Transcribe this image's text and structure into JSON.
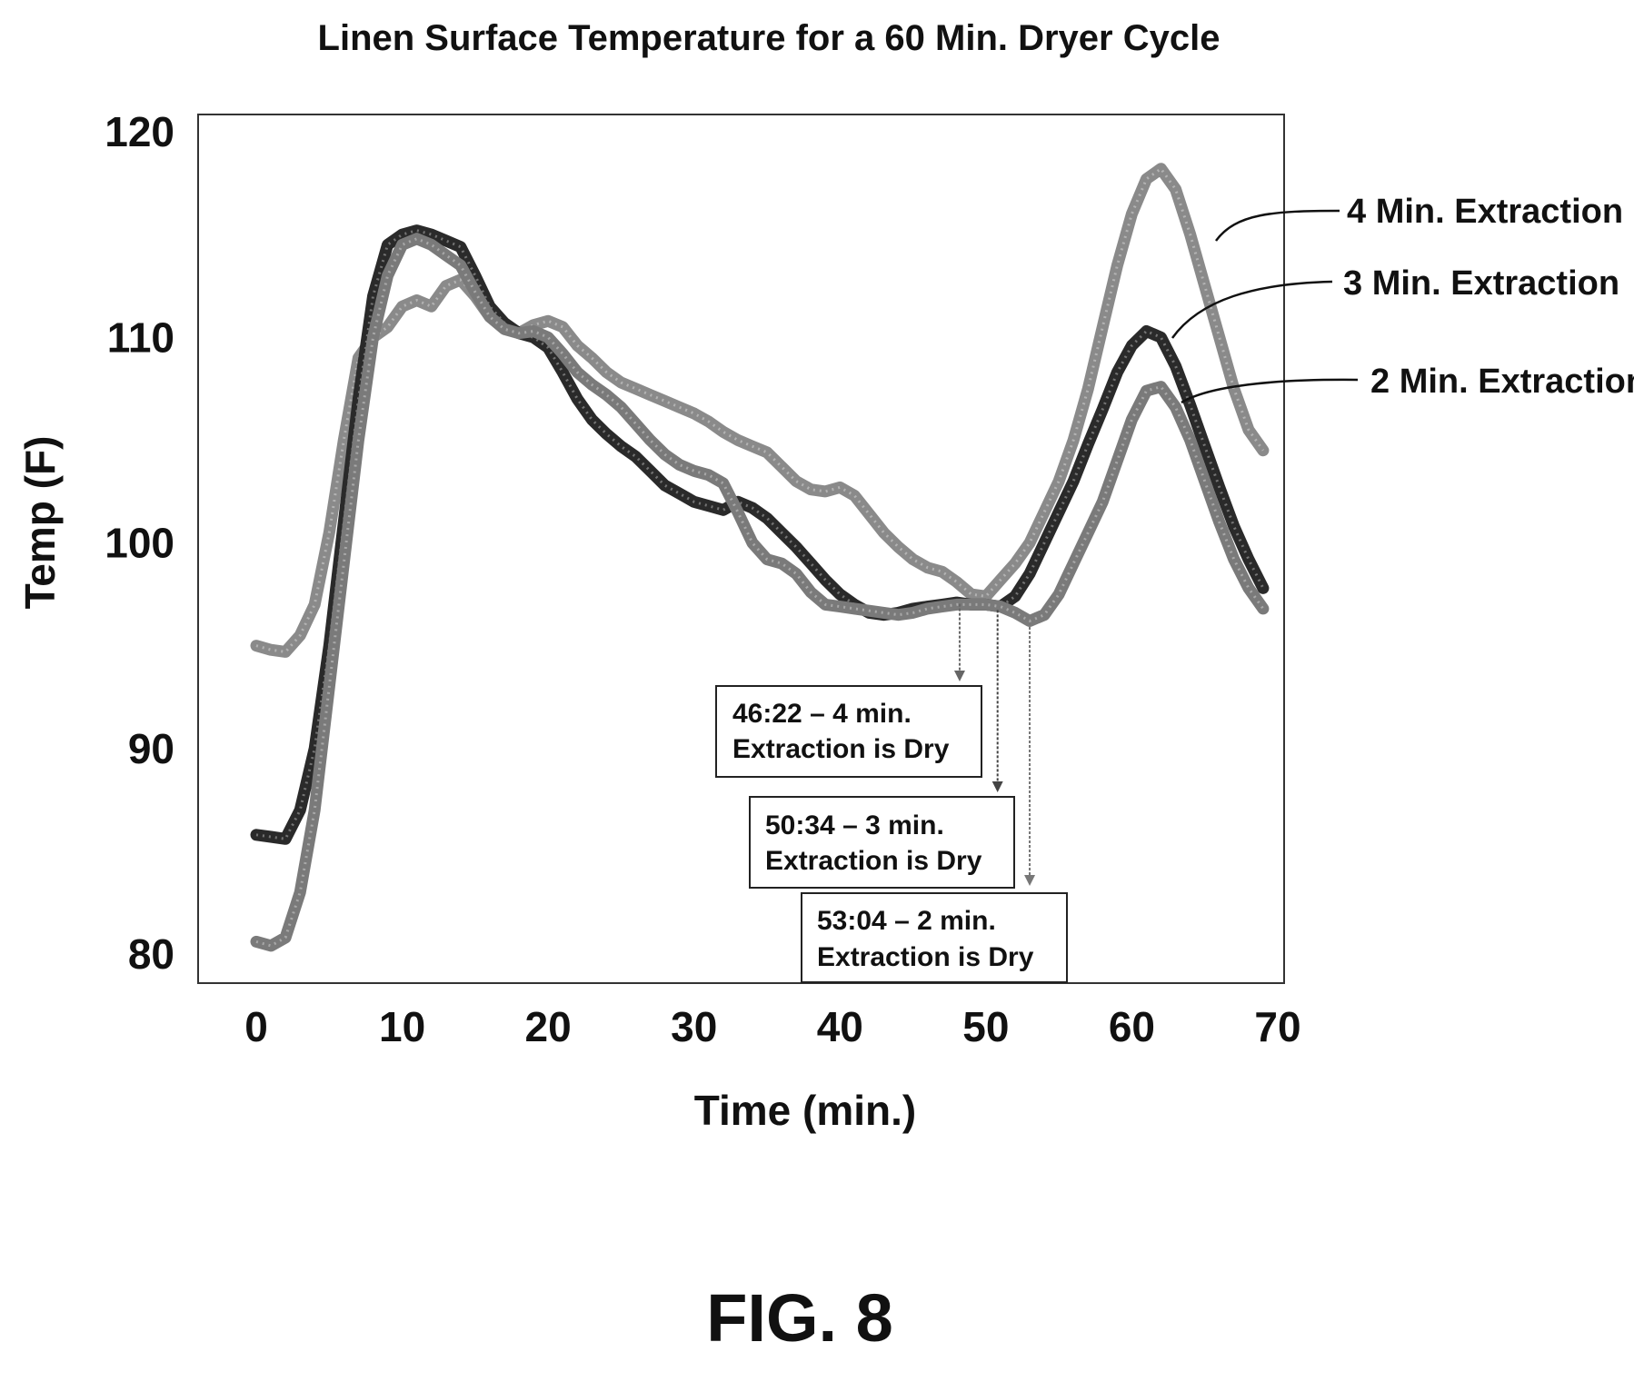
{
  "chart_data": {
    "type": "line",
    "title": "Linen Surface Temperature for a 60 Min. Dryer Cycle",
    "xlabel": "Time (min.)",
    "ylabel": "Temp (F)",
    "xlim": [
      0,
      70
    ],
    "ylim": [
      80,
      120
    ],
    "x_ticks": [
      "0",
      "10",
      "20",
      "30",
      "40",
      "50",
      "60",
      "70"
    ],
    "y_ticks": [
      "80",
      "90",
      "100",
      "110",
      "120"
    ],
    "grid": false,
    "series": [
      {
        "name": "4 Min. Extraction",
        "color": "#8a8a8a",
        "points": [
          [
            0,
            95
          ],
          [
            1,
            94.8
          ],
          [
            2,
            94.7
          ],
          [
            3,
            95.5
          ],
          [
            4,
            97
          ],
          [
            5,
            100.5
          ],
          [
            6,
            105
          ],
          [
            7,
            109
          ],
          [
            8,
            110
          ],
          [
            9,
            110.5
          ],
          [
            10,
            111.5
          ],
          [
            11,
            111.8
          ],
          [
            12,
            111.5
          ],
          [
            13,
            112.5
          ],
          [
            14,
            112.8
          ],
          [
            15,
            112
          ],
          [
            16,
            111
          ],
          [
            17,
            110.5
          ],
          [
            18,
            110.2
          ],
          [
            19,
            110.6
          ],
          [
            20,
            110.8
          ],
          [
            21,
            110.5
          ],
          [
            22,
            109.6
          ],
          [
            23,
            109
          ],
          [
            24,
            108.3
          ],
          [
            25,
            107.8
          ],
          [
            26,
            107.5
          ],
          [
            27,
            107.2
          ],
          [
            28,
            106.9
          ],
          [
            29,
            106.6
          ],
          [
            30,
            106.3
          ],
          [
            31,
            105.9
          ],
          [
            32,
            105.4
          ],
          [
            33,
            105
          ],
          [
            34,
            104.7
          ],
          [
            35,
            104.4
          ],
          [
            36,
            103.7
          ],
          [
            37,
            103
          ],
          [
            38,
            102.6
          ],
          [
            39,
            102.5
          ],
          [
            40,
            102.7
          ],
          [
            41,
            102.3
          ],
          [
            42,
            101.4
          ],
          [
            43,
            100.5
          ],
          [
            44,
            99.8
          ],
          [
            45,
            99.2
          ],
          [
            46,
            98.8
          ],
          [
            47,
            98.6
          ],
          [
            48,
            98.1
          ],
          [
            49,
            97.5
          ],
          [
            50,
            97.4
          ],
          [
            51,
            98.2
          ],
          [
            52,
            99
          ],
          [
            53,
            100
          ],
          [
            54,
            101.5
          ],
          [
            55,
            103
          ],
          [
            56,
            105
          ],
          [
            57,
            107.5
          ],
          [
            58,
            110.5
          ],
          [
            59,
            113.5
          ],
          [
            60,
            116
          ],
          [
            61,
            117.7
          ],
          [
            62,
            118.2
          ],
          [
            63,
            117.2
          ],
          [
            64,
            115
          ],
          [
            65,
            112.5
          ],
          [
            66,
            110
          ],
          [
            67,
            107.5
          ],
          [
            68,
            105.5
          ],
          [
            69,
            104.5
          ]
        ]
      },
      {
        "name": "3 Min. Extraction",
        "color": "#2a2a2a",
        "points": [
          [
            0,
            85.8
          ],
          [
            1,
            85.7
          ],
          [
            2,
            85.6
          ],
          [
            3,
            87
          ],
          [
            4,
            90
          ],
          [
            5,
            95
          ],
          [
            6,
            101
          ],
          [
            7,
            107
          ],
          [
            8,
            112
          ],
          [
            9,
            114.5
          ],
          [
            10,
            115
          ],
          [
            11,
            115.2
          ],
          [
            12,
            115
          ],
          [
            13,
            114.7
          ],
          [
            14,
            114.4
          ],
          [
            15,
            113
          ],
          [
            16,
            111.5
          ],
          [
            17,
            110.7
          ],
          [
            18,
            110.2
          ],
          [
            19,
            110
          ],
          [
            20,
            109.5
          ],
          [
            21,
            108.3
          ],
          [
            22,
            107
          ],
          [
            23,
            106
          ],
          [
            24,
            105.3
          ],
          [
            25,
            104.7
          ],
          [
            26,
            104.2
          ],
          [
            27,
            103.5
          ],
          [
            28,
            102.8
          ],
          [
            29,
            102.4
          ],
          [
            30,
            102
          ],
          [
            31,
            101.8
          ],
          [
            32,
            101.6
          ],
          [
            33,
            102
          ],
          [
            34,
            101.7
          ],
          [
            35,
            101.2
          ],
          [
            36,
            100.5
          ],
          [
            37,
            99.8
          ],
          [
            38,
            99
          ],
          [
            39,
            98.2
          ],
          [
            40,
            97.5
          ],
          [
            41,
            97
          ],
          [
            42,
            96.6
          ],
          [
            43,
            96.5
          ],
          [
            44,
            96.6
          ],
          [
            45,
            96.8
          ],
          [
            46,
            96.9
          ],
          [
            47,
            97
          ],
          [
            48,
            97.1
          ],
          [
            49,
            97
          ],
          [
            50,
            97
          ],
          [
            51,
            96.9
          ],
          [
            52,
            97.4
          ],
          [
            53,
            98.5
          ],
          [
            54,
            100
          ],
          [
            55,
            101.5
          ],
          [
            56,
            103
          ],
          [
            57,
            104.8
          ],
          [
            58,
            106.5
          ],
          [
            59,
            108.3
          ],
          [
            60,
            109.6
          ],
          [
            61,
            110.3
          ],
          [
            62,
            110
          ],
          [
            63,
            108.6
          ],
          [
            64,
            106.7
          ],
          [
            65,
            104.7
          ],
          [
            66,
            102.7
          ],
          [
            67,
            100.8
          ],
          [
            68,
            99.2
          ],
          [
            69,
            97.8
          ]
        ]
      },
      {
        "name": "2 Min. Extraction",
        "color": "#7a7a7a",
        "points": [
          [
            0,
            80.6
          ],
          [
            1,
            80.4
          ],
          [
            2,
            80.8
          ],
          [
            3,
            83
          ],
          [
            4,
            87
          ],
          [
            5,
            93
          ],
          [
            6,
            99
          ],
          [
            7,
            105
          ],
          [
            8,
            110
          ],
          [
            9,
            113
          ],
          [
            10,
            114.5
          ],
          [
            11,
            114.8
          ],
          [
            12,
            114.5
          ],
          [
            13,
            114
          ],
          [
            14,
            113.5
          ],
          [
            15,
            112.2
          ],
          [
            16,
            111
          ],
          [
            17,
            110.4
          ],
          [
            18,
            110.2
          ],
          [
            19,
            110.3
          ],
          [
            20,
            110
          ],
          [
            21,
            109.2
          ],
          [
            22,
            108.3
          ],
          [
            23,
            107.7
          ],
          [
            24,
            107.2
          ],
          [
            25,
            106.6
          ],
          [
            26,
            105.8
          ],
          [
            27,
            105
          ],
          [
            28,
            104.3
          ],
          [
            29,
            103.8
          ],
          [
            30,
            103.5
          ],
          [
            31,
            103.3
          ],
          [
            32,
            102.9
          ],
          [
            33,
            101.5
          ],
          [
            34,
            100
          ],
          [
            35,
            99.2
          ],
          [
            36,
            99
          ],
          [
            37,
            98.5
          ],
          [
            38,
            97.6
          ],
          [
            39,
            97
          ],
          [
            40,
            96.9
          ],
          [
            41,
            96.8
          ],
          [
            42,
            96.7
          ],
          [
            43,
            96.6
          ],
          [
            44,
            96.5
          ],
          [
            45,
            96.6
          ],
          [
            46,
            96.8
          ],
          [
            47,
            96.9
          ],
          [
            48,
            97
          ],
          [
            49,
            97
          ],
          [
            50,
            97
          ],
          [
            51,
            96.9
          ],
          [
            52,
            96.6
          ],
          [
            53,
            96.2
          ],
          [
            54,
            96.5
          ],
          [
            55,
            97.5
          ],
          [
            56,
            99
          ],
          [
            57,
            100.5
          ],
          [
            58,
            102
          ],
          [
            59,
            104
          ],
          [
            60,
            106
          ],
          [
            61,
            107.4
          ],
          [
            62,
            107.6
          ],
          [
            63,
            106.6
          ],
          [
            64,
            105
          ],
          [
            65,
            103
          ],
          [
            66,
            101
          ],
          [
            67,
            99.2
          ],
          [
            68,
            97.8
          ],
          [
            69,
            96.8
          ]
        ]
      }
    ],
    "annotations": [
      {
        "line1": "46:22 – 4 min.",
        "line2": "Extraction is Dry",
        "x": 48.2,
        "y": 97.3
      },
      {
        "line1": "50:34 – 3 min.",
        "line2": "Extraction is Dry",
        "x": 50.8,
        "y": 97.0
      },
      {
        "line1": "53:04 – 2 min.",
        "line2": "Extraction is Dry",
        "x": 53.0,
        "y": 96.4
      }
    ]
  },
  "figure_label": "FIG. 8"
}
